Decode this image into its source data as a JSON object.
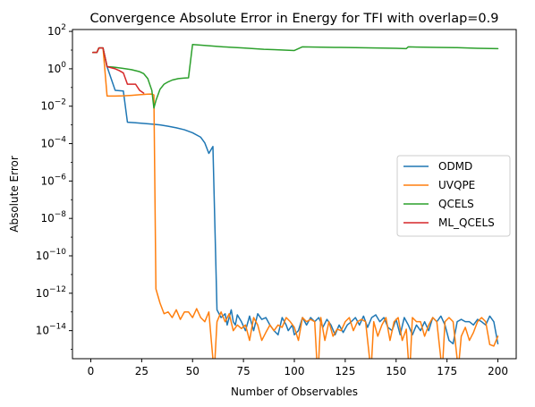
{
  "chart_data": {
    "type": "line",
    "title": "Convergence Absolute Error in Energy for TFI with overlap=0.9",
    "xlabel": "Number of Observables",
    "ylabel": "Absolute Error",
    "xlim": [
      -9,
      209
    ],
    "ylim_log10": [
      -15.5,
      2.1
    ],
    "yscale": "log",
    "grid": false,
    "legend_position": "right",
    "xticks": [
      0,
      25,
      50,
      75,
      100,
      125,
      150,
      175,
      200
    ],
    "xtick_labels": [
      "0",
      "25",
      "50",
      "75",
      "100",
      "125",
      "150",
      "175",
      "200"
    ],
    "yticks_exp": [
      2,
      0,
      -2,
      -4,
      -6,
      -8,
      -10,
      -12,
      -14
    ],
    "ytick_labels": [
      {
        "base": "10",
        "exp": "2"
      },
      {
        "base": "10",
        "exp": "0"
      },
      {
        "base": "10",
        "exp": "−2"
      },
      {
        "base": "10",
        "exp": "−4"
      },
      {
        "base": "10",
        "exp": "−6"
      },
      {
        "base": "10",
        "exp": "−8"
      },
      {
        "base": "10",
        "exp": "−10"
      },
      {
        "base": "10",
        "exp": "−12"
      },
      {
        "base": "10",
        "exp": "−14"
      }
    ],
    "series": [
      {
        "name": "ODMD",
        "color": "#1f77b4",
        "points": [
          [
            1,
            7.5
          ],
          [
            3,
            7.5
          ],
          [
            4,
            13
          ],
          [
            6,
            13
          ],
          [
            8,
            1.3
          ],
          [
            10,
            0.3
          ],
          [
            12,
            0.07
          ],
          [
            16,
            0.065
          ],
          [
            18,
            0.0014
          ],
          [
            22,
            0.0013
          ],
          [
            26,
            0.0012
          ],
          [
            30,
            0.0011
          ],
          [
            34,
            0.001
          ],
          [
            38,
            0.00085
          ],
          [
            42,
            0.0007
          ],
          [
            46,
            0.00055
          ],
          [
            50,
            0.00038
          ],
          [
            54,
            0.00022
          ],
          [
            56,
            0.00011
          ],
          [
            58,
            3e-05
          ],
          [
            60,
            7e-05
          ],
          [
            62,
            1.3e-13
          ],
          [
            64,
            5e-14
          ],
          [
            66,
            8e-14
          ],
          [
            67,
            2e-14
          ],
          [
            69,
            1.3e-13
          ],
          [
            70,
            3e-14
          ],
          [
            71,
            2e-14
          ],
          [
            72,
            7e-14
          ],
          [
            74,
            3e-14
          ],
          [
            76,
            1e-14
          ],
          [
            78,
            6e-14
          ],
          [
            80,
            1e-14
          ],
          [
            82,
            8e-14
          ],
          [
            84,
            4e-14
          ],
          [
            86,
            5e-14
          ],
          [
            88,
            2e-14
          ],
          [
            90,
            1e-14
          ],
          [
            92,
            6e-15
          ],
          [
            94,
            5e-14
          ],
          [
            96,
            2e-14
          ],
          [
            97,
            1e-14
          ],
          [
            99,
            2e-14
          ],
          [
            100,
            6e-15
          ],
          [
            102,
            1e-14
          ],
          [
            104,
            5e-14
          ],
          [
            106,
            2e-14
          ],
          [
            108,
            5e-14
          ],
          [
            110,
            3e-14
          ],
          [
            112,
            5e-14
          ],
          [
            114,
            1.5e-14
          ],
          [
            116,
            4e-14
          ],
          [
            118,
            2e-14
          ],
          [
            120,
            6e-15
          ],
          [
            122,
            2e-14
          ],
          [
            124,
            8e-15
          ],
          [
            126,
            2e-14
          ],
          [
            128,
            3e-14
          ],
          [
            130,
            5e-14
          ],
          [
            132,
            2e-14
          ],
          [
            134,
            6e-14
          ],
          [
            136,
            1.5e-14
          ],
          [
            138,
            5e-14
          ],
          [
            140,
            7e-14
          ],
          [
            142,
            3e-14
          ],
          [
            144,
            5e-14
          ],
          [
            146,
            1.5e-14
          ],
          [
            148,
            1e-14
          ],
          [
            150,
            4e-14
          ],
          [
            152,
            6e-15
          ],
          [
            154,
            5e-14
          ],
          [
            156,
            2e-14
          ],
          [
            158,
            6e-15
          ],
          [
            160,
            2e-14
          ],
          [
            162,
            1e-14
          ],
          [
            164,
            3e-14
          ],
          [
            166,
            1e-14
          ],
          [
            168,
            5e-14
          ],
          [
            170,
            3e-14
          ],
          [
            172,
            6e-14
          ],
          [
            174,
            2e-14
          ],
          [
            176,
            3e-15
          ],
          [
            178,
            2e-15
          ],
          [
            180,
            3e-14
          ],
          [
            182,
            4e-14
          ],
          [
            184,
            3e-14
          ],
          [
            186,
            3e-14
          ],
          [
            188,
            2e-14
          ],
          [
            190,
            4e-14
          ],
          [
            192,
            3e-14
          ],
          [
            194,
            2e-14
          ],
          [
            196,
            6e-14
          ],
          [
            198,
            3e-14
          ],
          [
            200,
            2e-15
          ]
        ]
      },
      {
        "name": "UVQPE",
        "color": "#ff7f0e",
        "points": [
          [
            1,
            7.5
          ],
          [
            3,
            7.5
          ],
          [
            4,
            13
          ],
          [
            6,
            13
          ],
          [
            8,
            0.035
          ],
          [
            12,
            0.035
          ],
          [
            16,
            0.036
          ],
          [
            20,
            0.038
          ],
          [
            24,
            0.041
          ],
          [
            28,
            0.044
          ],
          [
            30,
            0.045
          ],
          [
            31,
            0.04
          ],
          [
            32,
            1.7e-12
          ],
          [
            34,
            3e-13
          ],
          [
            36,
            8e-14
          ],
          [
            38,
            1e-13
          ],
          [
            40,
            5e-14
          ],
          [
            42,
            1.3e-13
          ],
          [
            44,
            4e-14
          ],
          [
            46,
            1e-13
          ],
          [
            48,
            1e-13
          ],
          [
            50,
            5e-14
          ],
          [
            52,
            1.5e-13
          ],
          [
            54,
            5e-14
          ],
          [
            56,
            3e-14
          ],
          [
            58,
            1e-13
          ],
          [
            60,
            3e-16
          ],
          [
            61,
            3e-16
          ],
          [
            62,
            3e-14
          ],
          [
            64,
            1e-13
          ],
          [
            66,
            3e-14
          ],
          [
            68,
            8e-14
          ],
          [
            70,
            1e-14
          ],
          [
            72,
            2e-14
          ],
          [
            74,
            1.3e-14
          ],
          [
            76,
            2e-14
          ],
          [
            78,
            3e-15
          ],
          [
            80,
            5e-14
          ],
          [
            82,
            2e-14
          ],
          [
            84,
            3e-15
          ],
          [
            86,
            8e-15
          ],
          [
            88,
            2e-14
          ],
          [
            90,
            1e-14
          ],
          [
            92,
            2e-14
          ],
          [
            94,
            1.5e-14
          ],
          [
            96,
            5e-14
          ],
          [
            98,
            3e-14
          ],
          [
            100,
            1.5e-14
          ],
          [
            102,
            3e-15
          ],
          [
            104,
            5e-14
          ],
          [
            106,
            3e-14
          ],
          [
            108,
            4e-14
          ],
          [
            110,
            3e-14
          ],
          [
            111,
            3e-16
          ],
          [
            112,
            3e-16
          ],
          [
            113,
            5e-14
          ],
          [
            115,
            3e-15
          ],
          [
            117,
            3e-14
          ],
          [
            119,
            5e-15
          ],
          [
            121,
            1.2e-14
          ],
          [
            123,
            1e-14
          ],
          [
            125,
            3e-14
          ],
          [
            127,
            5e-14
          ],
          [
            129,
            1e-14
          ],
          [
            131,
            3e-14
          ],
          [
            133,
            4e-14
          ],
          [
            135,
            3e-14
          ],
          [
            137,
            3e-16
          ],
          [
            138,
            3e-16
          ],
          [
            139,
            3e-14
          ],
          [
            141,
            5e-15
          ],
          [
            143,
            2e-14
          ],
          [
            145,
            5e-14
          ],
          [
            147,
            3e-15
          ],
          [
            149,
            3e-14
          ],
          [
            151,
            5e-14
          ],
          [
            153,
            3e-15
          ],
          [
            155,
            1.2e-14
          ],
          [
            156,
            3e-16
          ],
          [
            157,
            3e-16
          ],
          [
            158,
            5e-14
          ],
          [
            160,
            3e-14
          ],
          [
            162,
            3e-14
          ],
          [
            164,
            5e-15
          ],
          [
            166,
            2e-14
          ],
          [
            168,
            5e-14
          ],
          [
            170,
            3e-14
          ],
          [
            172,
            3e-16
          ],
          [
            173,
            3e-16
          ],
          [
            174,
            3e-14
          ],
          [
            176,
            5e-14
          ],
          [
            178,
            3e-14
          ],
          [
            180,
            3e-16
          ],
          [
            181,
            3e-16
          ],
          [
            182,
            5e-15
          ],
          [
            184,
            1.5e-14
          ],
          [
            186,
            3e-15
          ],
          [
            188,
            8e-15
          ],
          [
            190,
            3e-14
          ],
          [
            192,
            5e-14
          ],
          [
            194,
            3e-14
          ],
          [
            196,
            1.8e-15
          ],
          [
            198,
            1.5e-15
          ],
          [
            200,
            5e-15
          ]
        ]
      },
      {
        "name": "QCELS",
        "color": "#2ca02c",
        "points": [
          [
            1,
            7.5
          ],
          [
            3,
            7.5
          ],
          [
            4,
            13
          ],
          [
            6,
            13
          ],
          [
            8,
            1.3
          ],
          [
            12,
            1.2
          ],
          [
            16,
            1.05
          ],
          [
            20,
            0.9
          ],
          [
            24,
            0.7
          ],
          [
            26,
            0.55
          ],
          [
            28,
            0.3
          ],
          [
            30,
            0.07
          ],
          [
            31,
            0.008
          ],
          [
            32,
            0.02
          ],
          [
            34,
            0.08
          ],
          [
            36,
            0.15
          ],
          [
            38,
            0.2
          ],
          [
            40,
            0.25
          ],
          [
            43,
            0.3
          ],
          [
            46,
            0.32
          ],
          [
            48,
            0.33
          ],
          [
            50,
            20
          ],
          [
            55,
            18
          ],
          [
            60,
            16.5
          ],
          [
            65,
            15
          ],
          [
            70,
            14
          ],
          [
            75,
            13
          ],
          [
            80,
            12
          ],
          [
            85,
            11
          ],
          [
            90,
            10.5
          ],
          [
            95,
            10
          ],
          [
            100,
            9.5
          ],
          [
            104,
            15
          ],
          [
            110,
            14.5
          ],
          [
            120,
            14
          ],
          [
            130,
            13.5
          ],
          [
            140,
            13
          ],
          [
            150,
            12.5
          ],
          [
            155,
            12
          ],
          [
            156,
            15
          ],
          [
            160,
            14.5
          ],
          [
            170,
            14
          ],
          [
            180,
            13.5
          ],
          [
            190,
            12.5
          ],
          [
            200,
            12
          ]
        ]
      },
      {
        "name": "ML_QCELS",
        "color": "#d62728",
        "points": [
          [
            1,
            7.5
          ],
          [
            3,
            7.5
          ],
          [
            4,
            13
          ],
          [
            6,
            13
          ],
          [
            8,
            1.3
          ],
          [
            12,
            1.0
          ],
          [
            14,
            0.8
          ],
          [
            16,
            0.6
          ],
          [
            18,
            0.15
          ],
          [
            22,
            0.15
          ],
          [
            24,
            0.07
          ],
          [
            26,
            0.05
          ]
        ]
      }
    ]
  }
}
